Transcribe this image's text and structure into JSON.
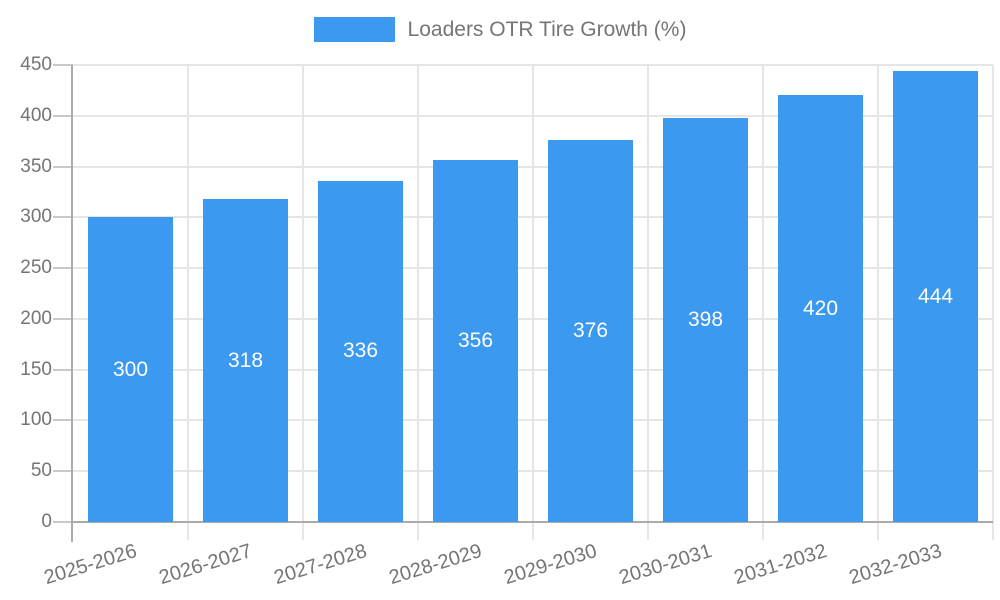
{
  "page": {
    "background": "#FFFFFF"
  },
  "chart_data": {
    "type": "bar",
    "title": "Loaders OTR Tire Growth (%)",
    "legend": {
      "label": "Loaders OTR Tire Growth (%)",
      "position": "top-center",
      "swatch_color": "#3B99F0"
    },
    "categories": [
      "2025-2026",
      "2026-2027",
      "2027-2028",
      "2028-2029",
      "2029-2030",
      "2030-2031",
      "2031-2032",
      "2032-2033"
    ],
    "series": [
      {
        "name": "Loaders OTR Tire Growth (%)",
        "values": [
          300,
          318,
          336,
          356,
          376,
          398,
          420,
          444
        ],
        "color": "#3B99F0"
      }
    ],
    "value_labels": {
      "show": true,
      "position": "middle-of-bar",
      "color": "#FFFFFF"
    },
    "xlabel": "",
    "ylabel": "",
    "ylim": [
      0,
      450
    ],
    "yticks": [
      0,
      50,
      100,
      150,
      200,
      250,
      300,
      350,
      400,
      450
    ],
    "grid": true,
    "x_tick_label_rotation_deg": -17,
    "colors": {
      "bar": "#3B99F0",
      "grid": "#E6E6E6",
      "tick": "#C9C9C9",
      "axis": "#ABABAB",
      "axis_text": "#757575",
      "value_text": "#FFFFFF",
      "background": "#FFFFFF"
    }
  }
}
